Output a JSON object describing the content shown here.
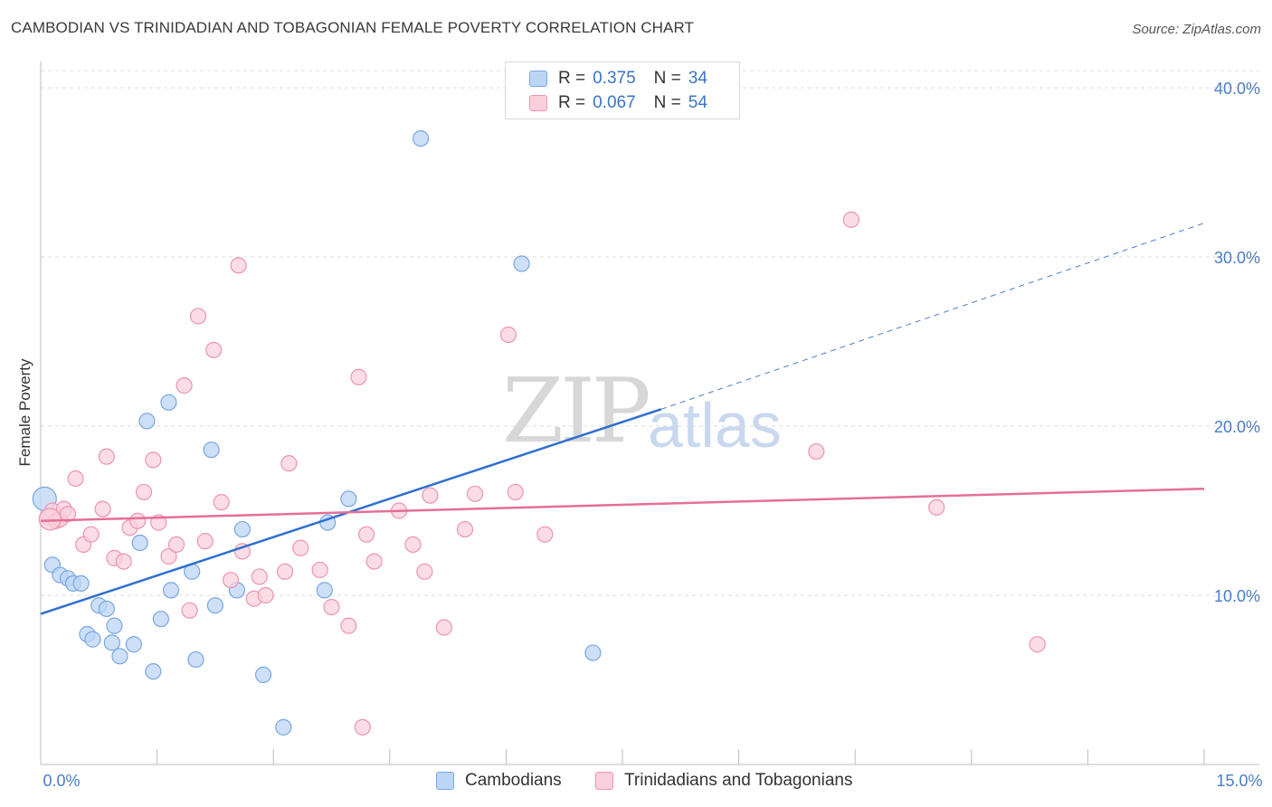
{
  "title": "CAMBODIAN VS TRINIDADIAN AND TOBAGONIAN FEMALE POVERTY CORRELATION CHART",
  "source": "Source: ZipAtlas.com",
  "watermark": {
    "zip": "ZIP",
    "atlas": "atlas"
  },
  "legend": {
    "r_label": "R =",
    "n_label": "N =",
    "rows": [
      {
        "r": "0.375",
        "n": "34",
        "color": "#a9c8f0",
        "border": "#7aa6e0"
      },
      {
        "r": "0.067",
        "n": "54",
        "color": "#f8c3d3",
        "border": "#ec95b0"
      }
    ]
  },
  "bottom_legend": [
    {
      "label": "Cambodians",
      "color": "#bcd6f5",
      "border": "#7aa6e0"
    },
    {
      "label": "Trinidadians and Tobagonians",
      "color": "#fbd0dc",
      "border": "#ec95b0"
    }
  ],
  "chart_data": {
    "type": "scatter",
    "title": "CAMBODIAN VS TRINIDADIAN AND TOBAGONIAN FEMALE POVERTY CORRELATION CHART",
    "xlabel": "",
    "ylabel": "Female Poverty",
    "xlim": [
      0,
      15
    ],
    "ylim": [
      0,
      40
    ],
    "x_tick_labels": [
      "0.0%",
      "15.0%"
    ],
    "y_ticks": [
      10,
      20,
      30,
      40
    ],
    "y_tick_labels": [
      "10.0%",
      "20.0%",
      "30.0%",
      "40.0%"
    ],
    "grid": "horizontal dashed",
    "legend_position": "top-center",
    "series": [
      {
        "name": "Cambodians",
        "color": "#7aa6e0",
        "fill": "#bcd6f5",
        "r": 0.375,
        "n": 34,
        "points": [
          [
            0.05,
            15.7
          ],
          [
            0.15,
            11.8
          ],
          [
            0.25,
            11.2
          ],
          [
            0.35,
            11.0
          ],
          [
            0.42,
            10.7
          ],
          [
            0.52,
            10.7
          ],
          [
            0.75,
            9.4
          ],
          [
            0.85,
            9.2
          ],
          [
            0.6,
            7.7
          ],
          [
            0.67,
            7.4
          ],
          [
            0.95,
            8.2
          ],
          [
            0.92,
            7.2
          ],
          [
            1.02,
            6.4
          ],
          [
            1.2,
            7.1
          ],
          [
            1.28,
            13.1
          ],
          [
            1.37,
            20.3
          ],
          [
            1.45,
            5.5
          ],
          [
            1.55,
            8.6
          ],
          [
            1.65,
            21.4
          ],
          [
            1.68,
            10.3
          ],
          [
            1.95,
            11.4
          ],
          [
            2.0,
            6.2
          ],
          [
            2.25,
            9.4
          ],
          [
            2.2,
            18.6
          ],
          [
            2.53,
            10.3
          ],
          [
            2.6,
            13.9
          ],
          [
            2.87,
            5.3
          ],
          [
            3.13,
            2.2
          ],
          [
            3.7,
            14.3
          ],
          [
            3.66,
            10.3
          ],
          [
            3.97,
            15.7
          ],
          [
            4.9,
            37.0
          ],
          [
            6.2,
            29.6
          ],
          [
            7.12,
            6.6
          ]
        ],
        "trend": {
          "x1": 0.0,
          "y1": 8.9,
          "x2": 8.0,
          "y2": 21.0,
          "dashed_to_x": 15.0,
          "dashed_to_y": 32.0
        }
      },
      {
        "name": "Trinidadians and Tobagonians",
        "color": "#ec95b0",
        "fill": "#fbd0dc",
        "r": 0.067,
        "n": 54,
        "points": [
          [
            0.1,
            14.6
          ],
          [
            0.15,
            15.0
          ],
          [
            0.2,
            14.4
          ],
          [
            0.25,
            14.5
          ],
          [
            0.3,
            15.1
          ],
          [
            0.35,
            14.8
          ],
          [
            0.45,
            16.9
          ],
          [
            0.55,
            13.0
          ],
          [
            0.65,
            13.6
          ],
          [
            0.8,
            15.1
          ],
          [
            0.85,
            18.2
          ],
          [
            0.95,
            12.2
          ],
          [
            1.07,
            12.0
          ],
          [
            1.15,
            14.0
          ],
          [
            1.25,
            14.4
          ],
          [
            1.33,
            16.1
          ],
          [
            1.45,
            18.0
          ],
          [
            1.52,
            14.3
          ],
          [
            1.65,
            12.3
          ],
          [
            1.75,
            13.0
          ],
          [
            1.85,
            22.4
          ],
          [
            1.92,
            9.1
          ],
          [
            2.03,
            26.5
          ],
          [
            2.12,
            13.2
          ],
          [
            2.23,
            24.5
          ],
          [
            2.33,
            15.5
          ],
          [
            2.45,
            10.9
          ],
          [
            2.6,
            12.6
          ],
          [
            2.55,
            29.5
          ],
          [
            2.75,
            9.8
          ],
          [
            2.82,
            11.1
          ],
          [
            2.9,
            10.0
          ],
          [
            3.15,
            11.4
          ],
          [
            3.2,
            17.8
          ],
          [
            3.35,
            12.8
          ],
          [
            3.6,
            11.5
          ],
          [
            3.75,
            9.3
          ],
          [
            3.97,
            8.2
          ],
          [
            4.1,
            22.9
          ],
          [
            4.15,
            2.2
          ],
          [
            4.2,
            13.6
          ],
          [
            4.3,
            12.0
          ],
          [
            4.62,
            15.0
          ],
          [
            4.8,
            13.0
          ],
          [
            4.95,
            11.4
          ],
          [
            5.02,
            15.9
          ],
          [
            5.2,
            8.1
          ],
          [
            5.47,
            13.9
          ],
          [
            5.6,
            16.0
          ],
          [
            6.03,
            25.4
          ],
          [
            6.12,
            16.1
          ],
          [
            6.5,
            13.6
          ],
          [
            10.0,
            18.5
          ],
          [
            10.45,
            32.2
          ],
          [
            11.55,
            15.2
          ],
          [
            12.85,
            7.1
          ]
        ],
        "trend": {
          "x1": 0.0,
          "y1": 14.4,
          "x2": 15.0,
          "y2": 16.3
        }
      }
    ]
  }
}
